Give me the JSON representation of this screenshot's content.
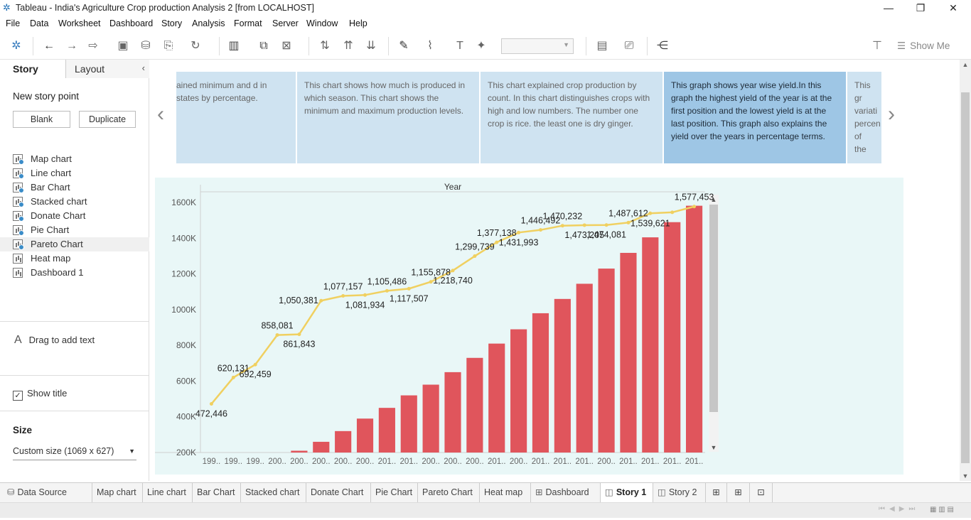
{
  "window": {
    "title": "Tableau - India's Agriculture Crop production Analysis 2 [from LOCALHOST]",
    "minimize": "—",
    "restore": "❐",
    "close": "✕"
  },
  "menu": [
    "File",
    "Data",
    "Worksheet",
    "Dashboard",
    "Story",
    "Analysis",
    "Format",
    "Server",
    "Window",
    "Help"
  ],
  "toolbar": {
    "show_me": "Show Me"
  },
  "left_pane": {
    "tab_story": "Story",
    "tab_layout": "Layout",
    "new_story_point": "New story point",
    "blank_button": "Blank",
    "duplicate_button": "Duplicate",
    "sheets": [
      {
        "label": "Map chart",
        "used": true
      },
      {
        "label": "Line chart",
        "used": true
      },
      {
        "label": "Bar Chart",
        "used": true
      },
      {
        "label": "Stacked chart",
        "used": true
      },
      {
        "label": "Donate Chart",
        "used": true
      },
      {
        "label": "Pie Chart",
        "used": true
      },
      {
        "label": "Pareto Chart",
        "used": true
      },
      {
        "label": "Heat map",
        "used": false
      },
      {
        "label": "Dashboard 1",
        "used": false
      }
    ],
    "drag_text": "Drag to add text",
    "show_title": "Show title",
    "size_label": "Size",
    "size_value": "Custom size (1069 x 627)"
  },
  "story": {
    "captions": [
      {
        "text": "ained minimum and d in states by percentage.",
        "active": false
      },
      {
        "text": "This chart shows how much is produced in which season. This chart shows the minimum and maximum production levels.",
        "active": false
      },
      {
        "text": "This chart explained crop production by count. In this chart distinguishes crops with high and low numbers. The number one crop is rice. the least one is dry ginger.",
        "active": false
      },
      {
        "text": "This graph shows year wise yield.In this graph the highest yield of the year is at the first position and the lowest yield is at the last position. This graph also explains the yield over the years in percentage terms.",
        "active": true
      },
      {
        "text": "This gr variati percen of the",
        "active": false
      }
    ]
  },
  "chart_data": {
    "type": "bar",
    "title": "Year",
    "yticks": [
      "200K",
      "400K",
      "600K",
      "800K",
      "1000K",
      "1200K",
      "1400K",
      "1600K"
    ],
    "ylim": [
      200000,
      1660000
    ],
    "categories": [
      "199..",
      "199..",
      "199..",
      "200..",
      "200..",
      "200..",
      "200..",
      "200..",
      "201..",
      "201..",
      "200..",
      "200..",
      "200..",
      "201..",
      "200..",
      "201..",
      "201..",
      "201..",
      "200..",
      "201..",
      "201..",
      "201..",
      "201.."
    ],
    "bar_color": "#e0555c",
    "line_color": "#f0d060",
    "series": [
      {
        "name": "bars",
        "values": [
          100000,
          120000,
          150000,
          200000,
          210000,
          260000,
          320000,
          390000,
          450000,
          520000,
          580000,
          650000,
          730000,
          810000,
          890000,
          980000,
          1060000,
          1145000,
          1230000,
          1318000,
          1405000,
          1490000,
          1582000
        ]
      },
      {
        "name": "line",
        "values": [
          472446,
          620131,
          692459,
          858081,
          861843,
          1050381,
          1077157,
          1081934,
          1105486,
          1117507,
          1155878,
          1218740,
          1299739,
          1377138,
          1431993,
          1446492,
          1470232,
          1473205,
          1474081,
          1487612,
          1539621,
          1545000,
          1577453
        ]
      }
    ],
    "labels": [
      {
        "text": "472,446",
        "pos": "below"
      },
      {
        "text": "620,131",
        "pos": "above"
      },
      {
        "text": "692,459",
        "pos": "below"
      },
      {
        "text": "858,081",
        "pos": "above"
      },
      {
        "text": "861,843",
        "pos": "below"
      },
      {
        "text": "1,050,381",
        "pos": "left"
      },
      {
        "text": "1,077,157",
        "pos": "above"
      },
      {
        "text": "1,081,934",
        "pos": "below"
      },
      {
        "text": "1,105,486",
        "pos": "above"
      },
      {
        "text": "1,117,507",
        "pos": "below"
      },
      {
        "text": "1,155,878",
        "pos": "above"
      },
      {
        "text": "1,218,740",
        "pos": "below"
      },
      {
        "text": "1,299,739",
        "pos": "above"
      },
      {
        "text": "1,377,138",
        "pos": "above"
      },
      {
        "text": "1,431,993",
        "pos": "below"
      },
      {
        "text": "1,446,492",
        "pos": "above"
      },
      {
        "text": "1,470,232",
        "pos": "above"
      },
      {
        "text": "1,473,205",
        "pos": "below"
      },
      {
        "text": "1,474,081",
        "pos": "below"
      },
      {
        "text": "1,487,612",
        "pos": "above"
      },
      {
        "text": "1,539,621",
        "pos": "below"
      },
      {
        "text": "",
        "pos": "none"
      },
      {
        "text": "1,577,453",
        "pos": "above"
      }
    ]
  },
  "bottom_tabs": [
    {
      "label": "Data Source",
      "icon": "database-icon",
      "active": false
    },
    {
      "label": "Map chart",
      "icon": "",
      "active": false
    },
    {
      "label": "Line chart",
      "icon": "",
      "active": false
    },
    {
      "label": "Bar Chart",
      "icon": "",
      "active": false
    },
    {
      "label": "Stacked chart",
      "icon": "",
      "active": false
    },
    {
      "label": "Donate Chart",
      "icon": "",
      "active": false
    },
    {
      "label": "Pie Chart",
      "icon": "",
      "active": false
    },
    {
      "label": "Pareto Chart",
      "icon": "",
      "active": false
    },
    {
      "label": "Heat map",
      "icon": "",
      "active": false
    },
    {
      "label": "Dashboard 1",
      "icon": "dashboard-icon",
      "active": false
    },
    {
      "label": "Story 1",
      "icon": "story-icon",
      "active": true
    },
    {
      "label": "Story 2",
      "icon": "story-icon",
      "active": false
    }
  ]
}
